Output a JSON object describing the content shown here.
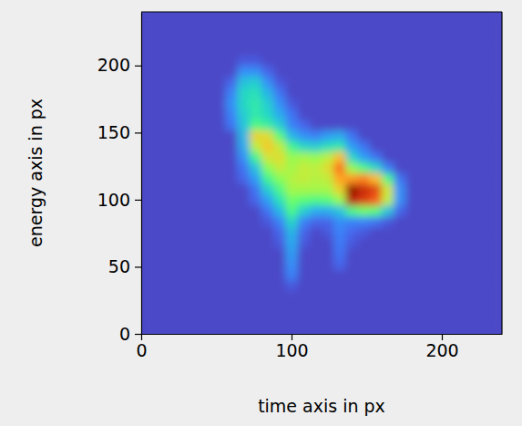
{
  "chart_data": {
    "type": "heatmap",
    "xlabel": "time axis in px",
    "ylabel": "energy axis in px",
    "xlim": [
      0,
      240
    ],
    "ylim": [
      0,
      240
    ],
    "xticks": [
      0,
      100,
      200
    ],
    "yticks": [
      0,
      50,
      100,
      150,
      200
    ],
    "color": "turbo",
    "zlim": [
      0,
      100
    ],
    "x": [
      0,
      8,
      16,
      24,
      32,
      40,
      48,
      56,
      64,
      72,
      80,
      88,
      96,
      104,
      112,
      120,
      128,
      136,
      144,
      152,
      160,
      168,
      176,
      184,
      192,
      200,
      208,
      216,
      224,
      232
    ],
    "y": [
      0,
      8,
      16,
      24,
      32,
      40,
      48,
      56,
      64,
      72,
      80,
      88,
      96,
      104,
      112,
      120,
      128,
      136,
      144,
      152,
      160,
      168,
      176,
      184,
      192,
      200,
      208,
      216,
      224,
      232
    ],
    "z": [
      [
        8,
        8,
        8,
        8,
        8,
        8,
        8,
        8,
        8,
        8,
        8,
        8,
        8,
        8,
        8,
        8,
        8,
        8,
        8,
        8,
        8,
        8,
        8,
        8,
        8,
        8,
        8,
        8,
        8,
        8
      ],
      [
        8,
        8,
        8,
        8,
        8,
        8,
        8,
        8,
        8,
        8,
        8,
        8,
        8,
        8,
        8,
        8,
        8,
        8,
        8,
        8,
        8,
        8,
        8,
        8,
        8,
        8,
        8,
        8,
        8,
        8
      ],
      [
        8,
        8,
        8,
        8,
        8,
        8,
        8,
        8,
        8,
        8,
        8,
        8,
        8,
        8,
        8,
        8,
        8,
        8,
        8,
        8,
        8,
        8,
        8,
        8,
        8,
        8,
        8,
        8,
        8,
        8
      ],
      [
        8,
        8,
        8,
        8,
        8,
        8,
        8,
        8,
        8,
        8,
        8,
        8,
        8,
        8,
        8,
        8,
        8,
        8,
        8,
        8,
        8,
        8,
        8,
        8,
        8,
        8,
        8,
        8,
        8,
        8
      ],
      [
        8,
        8,
        8,
        8,
        8,
        8,
        8,
        8,
        8,
        8,
        8,
        8,
        10,
        8,
        8,
        8,
        8,
        8,
        8,
        8,
        8,
        8,
        8,
        8,
        8,
        8,
        8,
        8,
        8,
        8
      ],
      [
        8,
        8,
        8,
        8,
        8,
        8,
        8,
        8,
        8,
        8,
        8,
        8,
        16,
        8,
        8,
        8,
        8,
        8,
        8,
        8,
        8,
        8,
        8,
        8,
        8,
        8,
        8,
        8,
        8,
        8
      ],
      [
        8,
        8,
        8,
        8,
        8,
        8,
        8,
        8,
        8,
        8,
        8,
        8,
        18,
        8,
        8,
        8,
        12,
        8,
        8,
        8,
        8,
        8,
        8,
        8,
        8,
        8,
        8,
        8,
        8,
        8
      ],
      [
        8,
        8,
        8,
        8,
        8,
        8,
        8,
        8,
        8,
        8,
        8,
        8,
        20,
        8,
        8,
        8,
        14,
        8,
        8,
        8,
        8,
        8,
        8,
        8,
        8,
        8,
        8,
        8,
        8,
        8
      ],
      [
        8,
        8,
        8,
        8,
        8,
        8,
        8,
        8,
        8,
        8,
        8,
        10,
        22,
        10,
        8,
        8,
        15,
        10,
        8,
        8,
        8,
        8,
        8,
        8,
        8,
        8,
        8,
        8,
        8,
        8
      ],
      [
        8,
        8,
        8,
        8,
        8,
        8,
        8,
        8,
        8,
        8,
        8,
        12,
        24,
        12,
        8,
        10,
        16,
        12,
        10,
        8,
        8,
        8,
        8,
        8,
        8,
        8,
        8,
        8,
        8,
        8
      ],
      [
        8,
        8,
        8,
        8,
        8,
        8,
        8,
        8,
        8,
        8,
        10,
        16,
        30,
        16,
        12,
        12,
        18,
        16,
        16,
        14,
        10,
        8,
        8,
        8,
        8,
        8,
        8,
        8,
        8,
        8
      ],
      [
        8,
        8,
        8,
        8,
        8,
        8,
        8,
        8,
        8,
        8,
        14,
        24,
        40,
        28,
        22,
        22,
        26,
        40,
        45,
        42,
        26,
        12,
        8,
        8,
        8,
        8,
        8,
        8,
        8,
        8
      ],
      [
        8,
        8,
        8,
        8,
        8,
        8,
        8,
        8,
        8,
        12,
        20,
        32,
        45,
        42,
        40,
        42,
        50,
        90,
        85,
        80,
        55,
        18,
        8,
        8,
        8,
        8,
        8,
        8,
        8,
        8
      ],
      [
        8,
        8,
        8,
        8,
        8,
        8,
        8,
        8,
        8,
        14,
        28,
        40,
        52,
        52,
        52,
        52,
        62,
        98,
        88,
        84,
        58,
        18,
        8,
        8,
        8,
        8,
        8,
        8,
        8,
        8
      ],
      [
        8,
        8,
        8,
        8,
        8,
        8,
        8,
        8,
        12,
        20,
        38,
        48,
        54,
        56,
        54,
        56,
        70,
        72,
        75,
        66,
        40,
        14,
        8,
        8,
        8,
        8,
        8,
        8,
        8,
        8
      ],
      [
        8,
        8,
        8,
        8,
        8,
        8,
        8,
        8,
        14,
        26,
        48,
        56,
        52,
        56,
        55,
        60,
        78,
        50,
        40,
        30,
        16,
        8,
        8,
        8,
        8,
        8,
        8,
        8,
        8,
        8
      ],
      [
        8,
        8,
        8,
        8,
        8,
        8,
        8,
        8,
        18,
        38,
        58,
        60,
        50,
        52,
        50,
        55,
        66,
        30,
        20,
        14,
        8,
        8,
        8,
        8,
        8,
        8,
        8,
        8,
        8,
        8
      ],
      [
        8,
        8,
        8,
        8,
        8,
        8,
        8,
        8,
        22,
        55,
        64,
        56,
        38,
        30,
        28,
        32,
        34,
        20,
        14,
        8,
        8,
        8,
        8,
        8,
        8,
        8,
        8,
        8,
        8,
        8
      ],
      [
        8,
        8,
        8,
        8,
        8,
        8,
        8,
        8,
        24,
        62,
        60,
        42,
        24,
        18,
        16,
        20,
        22,
        14,
        8,
        8,
        8,
        8,
        8,
        8,
        8,
        8,
        8,
        8,
        8,
        8
      ],
      [
        8,
        8,
        8,
        8,
        8,
        8,
        8,
        14,
        26,
        40,
        36,
        28,
        16,
        12,
        8,
        8,
        8,
        8,
        8,
        8,
        8,
        8,
        8,
        8,
        8,
        8,
        8,
        8,
        8,
        8
      ],
      [
        8,
        8,
        8,
        8,
        8,
        8,
        8,
        16,
        28,
        34,
        30,
        22,
        14,
        8,
        8,
        8,
        8,
        8,
        8,
        8,
        8,
        8,
        8,
        8,
        8,
        8,
        8,
        8,
        8,
        8
      ],
      [
        8,
        8,
        8,
        8,
        8,
        8,
        8,
        18,
        30,
        34,
        28,
        18,
        10,
        8,
        8,
        8,
        8,
        8,
        8,
        8,
        8,
        8,
        8,
        8,
        8,
        8,
        8,
        8,
        8,
        8
      ],
      [
        8,
        8,
        8,
        8,
        8,
        8,
        8,
        16,
        30,
        32,
        24,
        14,
        8,
        8,
        8,
        8,
        8,
        8,
        8,
        8,
        8,
        8,
        8,
        8,
        8,
        8,
        8,
        8,
        8,
        8
      ],
      [
        8,
        8,
        8,
        8,
        8,
        8,
        8,
        12,
        26,
        28,
        18,
        10,
        8,
        8,
        8,
        8,
        8,
        8,
        8,
        8,
        8,
        8,
        8,
        8,
        8,
        8,
        8,
        8,
        8,
        8
      ],
      [
        8,
        8,
        8,
        8,
        8,
        8,
        8,
        8,
        18,
        18,
        12,
        8,
        8,
        8,
        8,
        8,
        8,
        8,
        8,
        8,
        8,
        8,
        8,
        8,
        8,
        8,
        8,
        8,
        8,
        8
      ],
      [
        8,
        8,
        8,
        8,
        8,
        8,
        8,
        8,
        10,
        10,
        8,
        8,
        8,
        8,
        8,
        8,
        8,
        8,
        8,
        8,
        8,
        8,
        8,
        8,
        8,
        8,
        8,
        8,
        8,
        8
      ],
      [
        8,
        8,
        8,
        8,
        8,
        8,
        8,
        8,
        8,
        8,
        8,
        8,
        8,
        8,
        8,
        8,
        8,
        8,
        8,
        8,
        8,
        8,
        8,
        8,
        8,
        8,
        8,
        8,
        8,
        8
      ],
      [
        8,
        8,
        8,
        8,
        8,
        8,
        8,
        8,
        8,
        8,
        8,
        8,
        8,
        8,
        8,
        8,
        8,
        8,
        8,
        8,
        8,
        8,
        8,
        8,
        8,
        8,
        8,
        8,
        8,
        8
      ],
      [
        8,
        8,
        8,
        8,
        8,
        8,
        8,
        8,
        8,
        8,
        8,
        8,
        8,
        8,
        8,
        8,
        8,
        8,
        8,
        8,
        8,
        8,
        8,
        8,
        8,
        8,
        8,
        8,
        8,
        8
      ],
      [
        8,
        8,
        8,
        8,
        8,
        8,
        8,
        8,
        8,
        8,
        8,
        8,
        8,
        8,
        8,
        8,
        8,
        8,
        8,
        8,
        8,
        8,
        8,
        8,
        8,
        8,
        8,
        8,
        8,
        8
      ]
    ]
  }
}
